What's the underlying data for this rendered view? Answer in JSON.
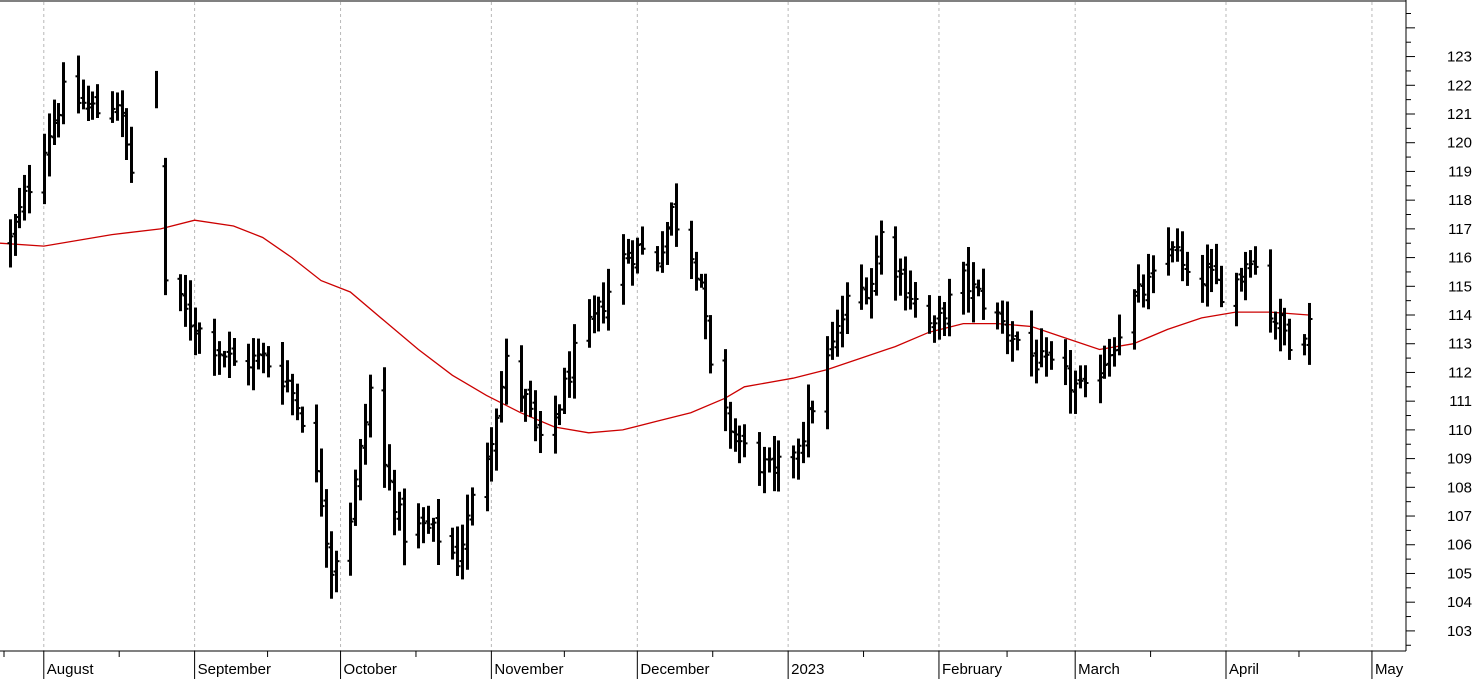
{
  "chart_data": {
    "type": "ohlc",
    "title": "",
    "xlabel": "",
    "ylabel": "",
    "ylim": [
      102.3,
      124.9
    ],
    "y_ticks": [
      103,
      104,
      105,
      106,
      107,
      108,
      109,
      110,
      111,
      112,
      113,
      114,
      115,
      116,
      117,
      118,
      119,
      120,
      121,
      122,
      123
    ],
    "x_months": [
      {
        "label": "August",
        "date": "2022-08-01"
      },
      {
        "label": "September",
        "date": "2022-09-01"
      },
      {
        "label": "October",
        "date": "2022-10-01"
      },
      {
        "label": "November",
        "date": "2022-11-01"
      },
      {
        "label": "December",
        "date": "2022-12-01"
      },
      {
        "label": "2023",
        "date": "2023-01-01"
      },
      {
        "label": "February",
        "date": "2023-02-01"
      },
      {
        "label": "March",
        "date": "2023-03-01"
      },
      {
        "label": "April",
        "date": "2023-04-01"
      },
      {
        "label": "May",
        "date": "2023-05-01"
      }
    ],
    "x_range": [
      "2022-07-23",
      "2023-05-08"
    ],
    "grid": true,
    "bar_color": "#000000",
    "ma_color": "#cc0000",
    "close_keys": [
      [
        "2022-07-25",
        116.6
      ],
      [
        "2022-08-01",
        120.0
      ],
      [
        "2022-08-05",
        121.7
      ],
      [
        "2022-08-12",
        121.1
      ],
      [
        "2022-08-16",
        121.5
      ],
      [
        "2022-08-19",
        119.0
      ],
      [
        "2022-08-22",
        117.5
      ],
      [
        "2022-08-25",
        115.5
      ],
      [
        "2022-08-31",
        113.8
      ],
      [
        "2022-09-06",
        112.8
      ],
      [
        "2022-09-09",
        112.3
      ],
      [
        "2022-09-15",
        112.5
      ],
      [
        "2022-09-20",
        111.7
      ],
      [
        "2022-09-23",
        110.5
      ],
      [
        "2022-09-27",
        107.6
      ],
      [
        "2022-09-29",
        105.2
      ],
      [
        "2022-10-03",
        107.0
      ],
      [
        "2022-10-07",
        111.4
      ],
      [
        "2022-10-10",
        108.7
      ],
      [
        "2022-10-14",
        106.4
      ],
      [
        "2022-10-18",
        106.6
      ],
      [
        "2022-10-21",
        106.3
      ],
      [
        "2022-10-25",
        105.5
      ],
      [
        "2022-10-28",
        107.5
      ],
      [
        "2022-11-01",
        109.9
      ],
      [
        "2022-11-04",
        112.3
      ],
      [
        "2022-11-08",
        111.0
      ],
      [
        "2022-11-11",
        109.4
      ],
      [
        "2022-11-15",
        110.9
      ],
      [
        "2022-11-18",
        112.6
      ],
      [
        "2022-11-23",
        114.1
      ],
      [
        "2022-11-28",
        116.0
      ],
      [
        "2022-12-01",
        116.3
      ],
      [
        "2022-12-05",
        116.0
      ],
      [
        "2022-12-08",
        117.6
      ],
      [
        "2022-12-12",
        116.2
      ],
      [
        "2022-12-14",
        115.2
      ],
      [
        "2022-12-16",
        112.0
      ],
      [
        "2022-12-19",
        110.4
      ],
      [
        "2022-12-23",
        109.3
      ],
      [
        "2022-12-29",
        108.4
      ],
      [
        "2023-01-04",
        109.9
      ],
      [
        "2023-01-09",
        112.4
      ],
      [
        "2023-01-13",
        114.4
      ],
      [
        "2023-01-18",
        115.2
      ],
      [
        "2023-01-20",
        116.8
      ],
      [
        "2023-01-25",
        115.0
      ],
      [
        "2023-01-31",
        113.4
      ],
      [
        "2023-02-02",
        114.2
      ],
      [
        "2023-02-06",
        115.2
      ],
      [
        "2023-02-10",
        114.5
      ],
      [
        "2023-02-15",
        113.5
      ],
      [
        "2023-02-21",
        112.4
      ],
      [
        "2023-02-27",
        111.8
      ],
      [
        "2023-03-03",
        111.2
      ],
      [
        "2023-03-08",
        112.8
      ],
      [
        "2023-03-13",
        114.5
      ],
      [
        "2023-03-17",
        115.2
      ],
      [
        "2023-03-21",
        116.6
      ],
      [
        "2023-03-24",
        115.1
      ],
      [
        "2023-03-28",
        115.4
      ],
      [
        "2023-03-31",
        114.9
      ],
      [
        "2023-04-03",
        115.2
      ],
      [
        "2023-04-06",
        116.2
      ],
      [
        "2023-04-10",
        114.1
      ],
      [
        "2023-04-14",
        113.2
      ],
      [
        "2023-04-18",
        113.7
      ]
    ],
    "moving_average": [
      [
        "2022-07-23",
        116.5
      ],
      [
        "2022-08-01",
        116.4
      ],
      [
        "2022-08-15",
        116.8
      ],
      [
        "2022-08-25",
        117.0
      ],
      [
        "2022-09-01",
        117.3
      ],
      [
        "2022-09-09",
        117.1
      ],
      [
        "2022-09-15",
        116.7
      ],
      [
        "2022-09-21",
        116.0
      ],
      [
        "2022-09-27",
        115.2
      ],
      [
        "2022-10-03",
        114.8
      ],
      [
        "2022-10-10",
        113.8
      ],
      [
        "2022-10-17",
        112.8
      ],
      [
        "2022-10-24",
        111.9
      ],
      [
        "2022-10-31",
        111.2
      ],
      [
        "2022-11-07",
        110.6
      ],
      [
        "2022-11-14",
        110.1
      ],
      [
        "2022-11-21",
        109.9
      ],
      [
        "2022-11-28",
        110.0
      ],
      [
        "2022-12-05",
        110.3
      ],
      [
        "2022-12-12",
        110.6
      ],
      [
        "2022-12-19",
        111.1
      ],
      [
        "2022-12-23",
        111.5
      ],
      [
        "2023-01-02",
        111.8
      ],
      [
        "2023-01-09",
        112.1
      ],
      [
        "2023-01-16",
        112.5
      ],
      [
        "2023-01-23",
        112.9
      ],
      [
        "2023-01-30",
        113.4
      ],
      [
        "2023-02-06",
        113.7
      ],
      [
        "2023-02-13",
        113.7
      ],
      [
        "2023-02-20",
        113.6
      ],
      [
        "2023-02-27",
        113.2
      ],
      [
        "2023-03-06",
        112.8
      ],
      [
        "2023-03-13",
        113.0
      ],
      [
        "2023-03-20",
        113.5
      ],
      [
        "2023-03-27",
        113.9
      ],
      [
        "2023-04-03",
        114.1
      ],
      [
        "2023-04-10",
        114.1
      ],
      [
        "2023-04-18",
        114.0
      ]
    ],
    "gap_bar": {
      "date": "2022-08-24",
      "high": 122.5,
      "low": 121.2
    }
  }
}
